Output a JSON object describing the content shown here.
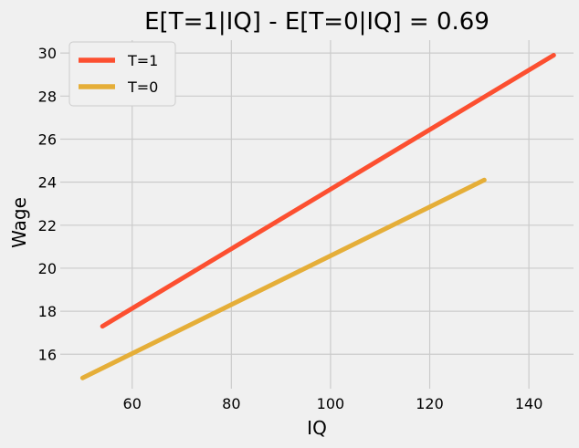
{
  "chart_data": {
    "type": "line",
    "title": "E[T=1|IQ] - E[T=0|IQ] = 0.69",
    "xlabel": "IQ",
    "ylabel": "Wage",
    "xlim": [
      45.5,
      149
    ],
    "ylim": [
      14.4,
      30.6
    ],
    "xticks": [
      60,
      80,
      100,
      120,
      140
    ],
    "yticks": [
      16,
      18,
      20,
      22,
      24,
      26,
      28,
      30
    ],
    "grid": true,
    "legend_position": "top-left",
    "series": [
      {
        "name": "T=1",
        "color": "#fc4f30",
        "x": [
          54,
          145
        ],
        "y": [
          17.3,
          29.9
        ]
      },
      {
        "name": "T=0",
        "color": "#e5ae38",
        "x": [
          50,
          131
        ],
        "y": [
          14.9,
          24.1
        ]
      }
    ]
  }
}
